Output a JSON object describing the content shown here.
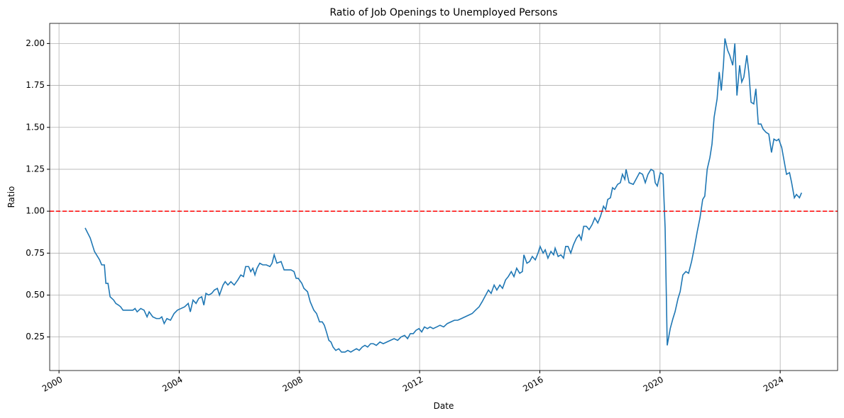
{
  "chart_data": {
    "type": "line",
    "title": "Ratio of Job Openings to Unemployed Persons",
    "xlabel": "Date",
    "ylabel": "Ratio",
    "x": [
      2000.87,
      2001.04,
      2001.18,
      2001.35,
      2001.42,
      2001.51,
      2001.56,
      2001.63,
      2001.7,
      2001.82,
      2001.89,
      2001.98,
      2002.05,
      2002.13,
      2002.22,
      2002.36,
      2002.46,
      2002.53,
      2002.6,
      2002.72,
      2002.83,
      2002.93,
      2003.0,
      2003.12,
      2003.24,
      2003.35,
      2003.42,
      2003.5,
      2003.59,
      2003.71,
      2003.83,
      2003.94,
      2004.06,
      2004.18,
      2004.3,
      2004.37,
      2004.46,
      2004.56,
      2004.65,
      2004.75,
      2004.82,
      2004.89,
      2004.98,
      2005.08,
      2005.17,
      2005.27,
      2005.34,
      2005.46,
      2005.53,
      2005.62,
      2005.72,
      2005.83,
      2005.95,
      2006.05,
      2006.14,
      2006.21,
      2006.31,
      2006.38,
      2006.45,
      2006.52,
      2006.59,
      2006.68,
      2006.78,
      2006.9,
      2007.02,
      2007.09,
      2007.16,
      2007.25,
      2007.39,
      2007.49,
      2007.61,
      2007.72,
      2007.82,
      2007.89,
      2007.96,
      2008.08,
      2008.15,
      2008.27,
      2008.36,
      2008.48,
      2008.57,
      2008.67,
      2008.76,
      2008.83,
      2008.9,
      2008.98,
      2009.05,
      2009.12,
      2009.21,
      2009.31,
      2009.4,
      2009.52,
      2009.61,
      2009.71,
      2009.8,
      2009.9,
      2009.99,
      2010.09,
      2010.18,
      2010.27,
      2010.37,
      2010.46,
      2010.56,
      2010.68,
      2010.79,
      2010.91,
      2011.03,
      2011.15,
      2011.27,
      2011.38,
      2011.5,
      2011.6,
      2011.69,
      2011.79,
      2011.88,
      2011.98,
      2012.07,
      2012.16,
      2012.26,
      2012.35,
      2012.45,
      2012.57,
      2012.68,
      2012.8,
      2012.92,
      2013.04,
      2013.16,
      2013.27,
      2013.39,
      2013.51,
      2013.63,
      2013.75,
      2013.86,
      2013.98,
      2014.08,
      2014.17,
      2014.29,
      2014.38,
      2014.48,
      2014.57,
      2014.67,
      2014.76,
      2014.86,
      2014.95,
      2015.05,
      2015.14,
      2015.23,
      2015.33,
      2015.42,
      2015.47,
      2015.57,
      2015.66,
      2015.75,
      2015.85,
      2015.94,
      2016.01,
      2016.11,
      2016.18,
      2016.27,
      2016.37,
      2016.46,
      2016.51,
      2016.61,
      2016.7,
      2016.79,
      2016.86,
      2016.94,
      2017.03,
      2017.12,
      2017.22,
      2017.31,
      2017.38,
      2017.46,
      2017.55,
      2017.64,
      2017.74,
      2017.83,
      2017.93,
      2018.02,
      2018.12,
      2018.19,
      2018.26,
      2018.35,
      2018.42,
      2018.49,
      2018.59,
      2018.68,
      2018.75,
      2018.83,
      2018.87,
      2018.97,
      2019.11,
      2019.23,
      2019.32,
      2019.42,
      2019.51,
      2019.6,
      2019.7,
      2019.79,
      2019.84,
      2019.91,
      2020.01,
      2020.1,
      2020.17,
      2020.24,
      2020.34,
      2020.43,
      2020.5,
      2020.6,
      2020.67,
      2020.76,
      2020.86,
      2020.95,
      2021.05,
      2021.14,
      2021.24,
      2021.33,
      2021.42,
      2021.49,
      2021.57,
      2021.66,
      2021.73,
      2021.8,
      2021.9,
      2021.97,
      2022.04,
      2022.11,
      2022.16,
      2022.25,
      2022.32,
      2022.42,
      2022.49,
      2022.56,
      2022.65,
      2022.72,
      2022.79,
      2022.89,
      2022.96,
      2023.03,
      2023.12,
      2023.19,
      2023.27,
      2023.36,
      2023.43,
      2023.53,
      2023.62,
      2023.71,
      2023.79,
      2023.88,
      2023.95,
      2024.05,
      2024.12,
      2024.21,
      2024.31,
      2024.38,
      2024.47,
      2024.54,
      2024.64,
      2024.71
    ],
    "series": [
      {
        "name": "Ratio",
        "color": "#1f77b4",
        "values": [
          0.9,
          0.84,
          0.76,
          0.71,
          0.68,
          0.68,
          0.57,
          0.57,
          0.49,
          0.47,
          0.45,
          0.44,
          0.43,
          0.41,
          0.41,
          0.41,
          0.41,
          0.42,
          0.4,
          0.42,
          0.41,
          0.37,
          0.4,
          0.37,
          0.36,
          0.36,
          0.37,
          0.33,
          0.36,
          0.35,
          0.39,
          0.41,
          0.42,
          0.43,
          0.45,
          0.4,
          0.47,
          0.45,
          0.48,
          0.49,
          0.44,
          0.51,
          0.5,
          0.51,
          0.53,
          0.54,
          0.5,
          0.56,
          0.58,
          0.56,
          0.58,
          0.56,
          0.59,
          0.62,
          0.61,
          0.67,
          0.67,
          0.64,
          0.66,
          0.62,
          0.66,
          0.69,
          0.68,
          0.68,
          0.67,
          0.69,
          0.74,
          0.69,
          0.7,
          0.65,
          0.65,
          0.65,
          0.64,
          0.6,
          0.6,
          0.57,
          0.54,
          0.52,
          0.46,
          0.41,
          0.39,
          0.34,
          0.34,
          0.32,
          0.28,
          0.23,
          0.22,
          0.19,
          0.17,
          0.18,
          0.16,
          0.16,
          0.17,
          0.16,
          0.17,
          0.18,
          0.17,
          0.19,
          0.2,
          0.19,
          0.21,
          0.21,
          0.2,
          0.22,
          0.21,
          0.22,
          0.23,
          0.24,
          0.23,
          0.25,
          0.26,
          0.24,
          0.27,
          0.27,
          0.29,
          0.3,
          0.28,
          0.31,
          0.3,
          0.31,
          0.3,
          0.31,
          0.32,
          0.31,
          0.33,
          0.34,
          0.35,
          0.35,
          0.36,
          0.37,
          0.38,
          0.39,
          0.41,
          0.43,
          0.46,
          0.49,
          0.53,
          0.51,
          0.56,
          0.53,
          0.56,
          0.54,
          0.59,
          0.61,
          0.64,
          0.61,
          0.66,
          0.63,
          0.64,
          0.74,
          0.69,
          0.7,
          0.73,
          0.71,
          0.75,
          0.79,
          0.75,
          0.77,
          0.72,
          0.76,
          0.74,
          0.78,
          0.73,
          0.74,
          0.72,
          0.79,
          0.79,
          0.75,
          0.8,
          0.84,
          0.86,
          0.83,
          0.91,
          0.91,
          0.89,
          0.92,
          0.96,
          0.93,
          0.97,
          1.03,
          1.01,
          1.07,
          1.08,
          1.14,
          1.13,
          1.16,
          1.17,
          1.22,
          1.19,
          1.25,
          1.17,
          1.16,
          1.2,
          1.23,
          1.22,
          1.17,
          1.22,
          1.25,
          1.24,
          1.17,
          1.15,
          1.23,
          1.22,
          0.9,
          0.2,
          0.3,
          0.36,
          0.4,
          0.48,
          0.52,
          0.62,
          0.64,
          0.63,
          0.7,
          0.78,
          0.88,
          0.96,
          1.07,
          1.09,
          1.25,
          1.32,
          1.4,
          1.56,
          1.67,
          1.83,
          1.72,
          1.87,
          2.03,
          1.96,
          1.93,
          1.87,
          2.0,
          1.69,
          1.87,
          1.77,
          1.8,
          1.93,
          1.82,
          1.65,
          1.64,
          1.73,
          1.52,
          1.52,
          1.49,
          1.47,
          1.46,
          1.35,
          1.43,
          1.42,
          1.43,
          1.38,
          1.31,
          1.22,
          1.23,
          1.17,
          1.08,
          1.1,
          1.08,
          1.11
        ]
      }
    ],
    "reference_line": {
      "value": 1,
      "color": "#ff0000",
      "style": "dashed"
    },
    "xlim": [
      1999.69,
      2025.91
    ],
    "xticks": [
      2000,
      2004,
      2008,
      2012,
      2016,
      2020,
      2024
    ],
    "ylim": [
      0.05,
      2.12
    ],
    "yticks": [
      {
        "value": 0.25,
        "label": "0.25"
      },
      {
        "value": 0.5,
        "label": "0.50"
      },
      {
        "value": 0.75,
        "label": "0.75"
      },
      {
        "value": 1,
        "label": "1.00"
      },
      {
        "value": 1.25,
        "label": "1.25"
      },
      {
        "value": 1.5,
        "label": "1.50"
      },
      {
        "value": 1.75,
        "label": "1.75"
      },
      {
        "value": 2,
        "label": "2.00"
      }
    ],
    "grid": true
  }
}
